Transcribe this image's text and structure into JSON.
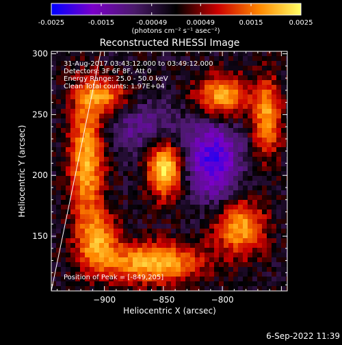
{
  "chart_data": {
    "type": "heatmap",
    "title": "Reconstructed RHESSI Image",
    "xlabel": "Heliocentric X (arcsec)",
    "ylabel": "Heliocentric Y (arcsec)",
    "xlim": [
      -945,
      -745
    ],
    "ylim": [
      105,
      302
    ],
    "xticks": [
      -900,
      -850,
      -800
    ],
    "yticks": [
      150,
      200,
      250,
      300
    ],
    "colorbar": {
      "ticks": [
        "-0.0025",
        "-0.0015",
        "-0.00049",
        "0.00049",
        "0.0015",
        "0.0025"
      ],
      "tick_values": [
        -0.0025,
        -0.0015,
        -0.00049,
        0.00049,
        0.0015,
        0.0025
      ],
      "range": [
        -0.0025,
        0.0025
      ],
      "units_label": "(photons cm⁻² s⁻¹ asec⁻²)",
      "colors": [
        "#0000ff",
        "#7a00c8",
        "#4a1a6a",
        "#000000",
        "#cc0000",
        "#ff8800",
        "#ffff66"
      ]
    },
    "annotations": [
      "31-Aug-2017 03:43:12.000 to 03:49:12.000",
      "Detectors: 3F 6F 8F, Att 0",
      "Energy Range: 25.0 - 50.0 keV",
      "Clean    Total counts: 1.97E+04"
    ],
    "peak_label": "Position of Peak = [-849,205]",
    "peak": [
      -849,
      205
    ],
    "limb_line": [
      [
        -945,
        105
      ],
      [
        -903,
        302
      ]
    ],
    "sources": [
      {
        "x": -849,
        "y": 205,
        "amp": 1.0,
        "sx": 10,
        "sy": 15
      },
      {
        "x": -800,
        "y": 265,
        "amp": 0.78,
        "sx": 15,
        "sy": 12
      },
      {
        "x": -762,
        "y": 248,
        "amp": 0.72,
        "sx": 8,
        "sy": 22
      },
      {
        "x": -785,
        "y": 157,
        "amp": 0.75,
        "sx": 14,
        "sy": 15
      },
      {
        "x": -858,
        "y": 128,
        "amp": 0.85,
        "sx": 28,
        "sy": 11
      },
      {
        "x": -915,
        "y": 215,
        "amp": 0.8,
        "sx": 10,
        "sy": 38
      },
      {
        "x": -900,
        "y": 265,
        "amp": 0.6,
        "sx": 14,
        "sy": 10
      },
      {
        "x": -905,
        "y": 145,
        "amp": 0.65,
        "sx": 12,
        "sy": 16
      },
      {
        "x": -808,
        "y": 212,
        "amp": -0.75,
        "sx": 15,
        "sy": 22
      },
      {
        "x": -870,
        "y": 240,
        "amp": -0.3,
        "sx": 25,
        "sy": 15
      }
    ]
  },
  "footer_date": "6-Sep-2022 11:39"
}
